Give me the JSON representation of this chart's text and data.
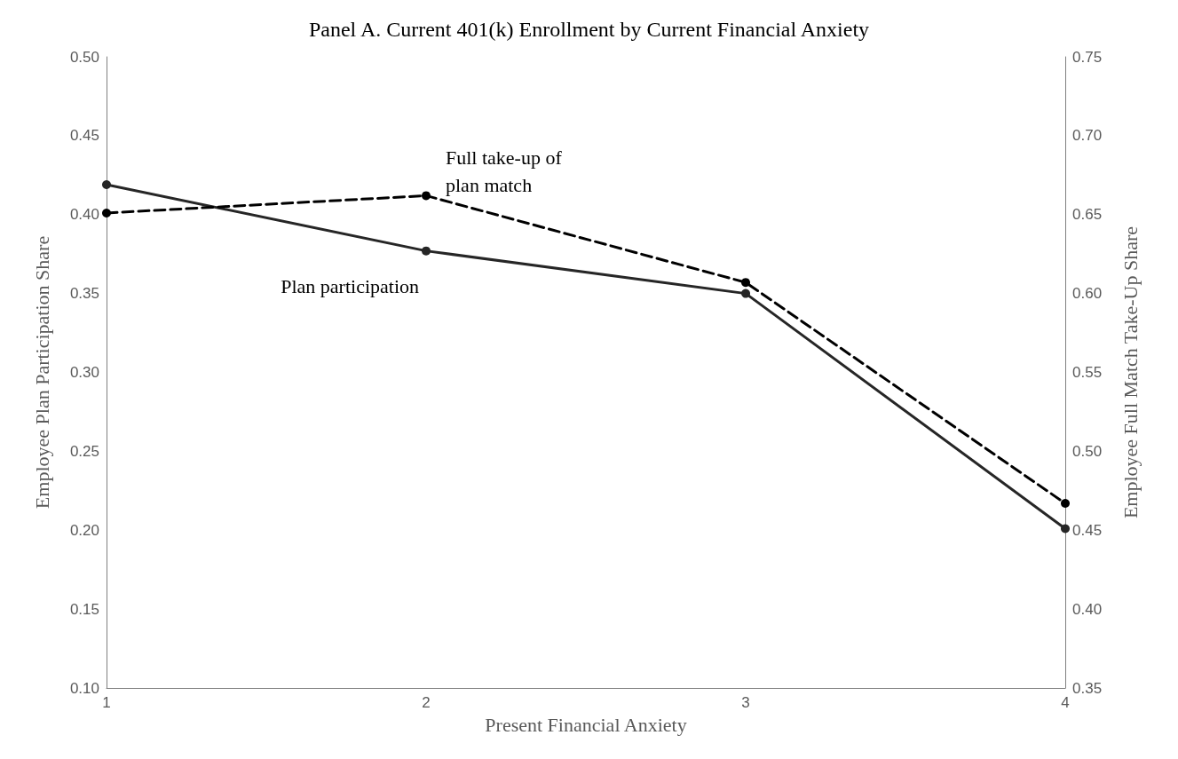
{
  "chart_data": {
    "type": "line",
    "title": "Panel A. Current 401(k) Enrollment by Current Financial Anxiety",
    "xlabel": "Present Financial Anxiety",
    "ylabel": "Employee Plan Participation Share",
    "y2label": "Employee Full Match Take-Up Share",
    "x": [
      1,
      2,
      3,
      4
    ],
    "xlim": [
      1,
      4
    ],
    "xticks": [
      1,
      2,
      3,
      4
    ],
    "ylim": [
      0.1,
      0.5
    ],
    "yticks": [
      {
        "value": 0.1,
        "label": "0.10"
      },
      {
        "value": 0.15,
        "label": "0.15"
      },
      {
        "value": 0.2,
        "label": "0.20"
      },
      {
        "value": 0.25,
        "label": "0.25"
      },
      {
        "value": 0.3,
        "label": "0.30"
      },
      {
        "value": 0.35,
        "label": "0.35"
      },
      {
        "value": 0.4,
        "label": "0.40"
      },
      {
        "value": 0.45,
        "label": "0.45"
      },
      {
        "value": 0.5,
        "label": "0.50"
      }
    ],
    "y2lim": [
      0.35,
      0.75
    ],
    "y2ticks": [
      0.35,
      {
        "value": 0.4,
        "label": "0.40"
      },
      0.45,
      {
        "value": 0.5,
        "label": "0.50"
      },
      0.55,
      {
        "value": 0.6,
        "label": "0.60"
      },
      0.65,
      {
        "value": 0.7,
        "label": "0.70"
      },
      0.75
    ],
    "series": [
      {
        "name": "Plan participation",
        "color": "#262626",
        "values": [
          0.419,
          0.377,
          0.35,
          0.201
        ],
        "line_style": "solid"
      },
      {
        "name": "Full take-up of plan match",
        "color": "#000000",
        "values": [
          0.651,
          0.662,
          0.607,
          0.467
        ],
        "line_style": "dashed",
        "axis": "y2"
      }
    ],
    "marker": "circle",
    "grid": false,
    "legend": false
  }
}
